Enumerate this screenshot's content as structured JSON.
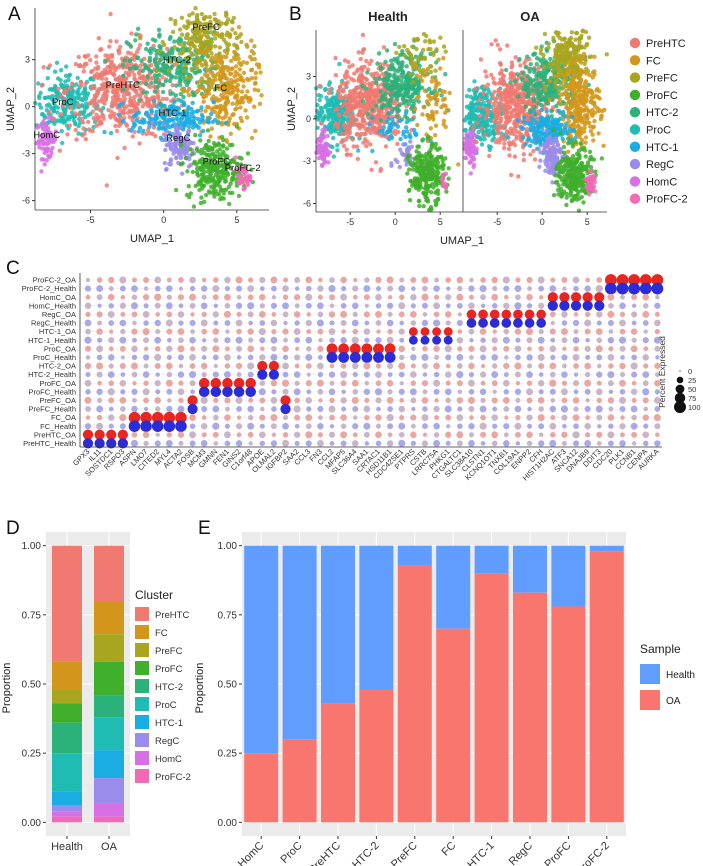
{
  "figure": {
    "panel_letters": [
      "A",
      "B",
      "C",
      "D",
      "E"
    ]
  },
  "colors": {
    "PreHTC": "#F07A71",
    "FC": "#D4961A",
    "PreFC": "#A8A51F",
    "ProFC": "#3FAF2C",
    "HTC-2": "#2BB27A",
    "ProC": "#1FBCB3",
    "HTC-1": "#1AADE3",
    "RegC": "#9A8CEA",
    "HomC": "#D870E5",
    "ProFC-2": "#F06AB5",
    "Health": "#619CFF",
    "OA": "#F8766D",
    "dot_high": "#E8261F",
    "dot_mid": "#C8B6C8",
    "dot_low": "#2B2BD8",
    "panel_bg": "#EBEBEB",
    "grid": "#FFFFFF"
  },
  "clusters": [
    "PreHTC",
    "FC",
    "PreFC",
    "ProFC",
    "HTC-2",
    "ProC",
    "HTC-1",
    "RegC",
    "HomC",
    "ProFC-2"
  ],
  "chart_data": [
    {
      "panel": "A",
      "type": "scatter",
      "xlabel": "UMAP_1",
      "ylabel": "UMAP_2",
      "xticks": [
        -5,
        0,
        5
      ],
      "yticks": [
        3,
        0,
        -3,
        -6
      ],
      "xlim": [
        -8.8,
        7.2
      ],
      "ylim": [
        -6.6,
        6.3
      ],
      "annotations": [
        {
          "text": "PreFC",
          "x": 2.9,
          "y": 4.9
        },
        {
          "text": "HTC-2",
          "x": 0.9,
          "y": 2.8
        },
        {
          "text": "FC",
          "x": 3.9,
          "y": 1.0
        },
        {
          "text": "PreHTC",
          "x": -2.8,
          "y": 1.2
        },
        {
          "text": "ProC",
          "x": -6.9,
          "y": 0.1
        },
        {
          "text": "HTC-1",
          "x": 0.6,
          "y": -0.6
        },
        {
          "text": "HomC",
          "x": -8.0,
          "y": -2.0
        },
        {
          "text": "RegC",
          "x": 1.0,
          "y": -2.2
        },
        {
          "text": "ProFC",
          "x": 3.6,
          "y": -3.7
        },
        {
          "text": "ProFC-2",
          "x": 5.4,
          "y": -4.1
        }
      ]
    },
    {
      "panel": "B",
      "type": "scatter",
      "facets": [
        "Health",
        "OA"
      ],
      "xlabel": "UMAP_1",
      "ylabel": "UMAP_2",
      "xticks": [
        -5,
        0,
        5
      ],
      "yticks": [
        3,
        0,
        -3,
        -6
      ],
      "xlim": [
        -8.8,
        7.2
      ],
      "ylim": [
        -6.6,
        6.3
      ],
      "legend": [
        "PreHTC",
        "FC",
        "PreFC",
        "ProFC",
        "HTC-2",
        "ProC",
        "HTC-1",
        "RegC",
        "HomC",
        "ProFC-2"
      ]
    },
    {
      "panel": "C",
      "type": "scatter",
      "subtype": "dotplot",
      "rows": [
        "ProFC-2_OA",
        "ProFC-2_Health",
        "HomC_OA",
        "HomC_Health",
        "RegC_OA",
        "RegC_Health",
        "HTC-1_OA",
        "HTC-1_Health",
        "ProC_OA",
        "ProC_Health",
        "HTC-2_OA",
        "HTC-2_Health",
        "ProFC_OA",
        "ProFC_Health",
        "PreFC_OA",
        "PreFC_Health",
        "FC_OA",
        "FC_Health",
        "PreHTC_OA",
        "PreHTC_Health"
      ],
      "genes": [
        "GPX3",
        "IL11",
        "SOSTDC1",
        "RSPO3",
        "ASPN",
        "LMO7",
        "CITED2",
        "MYL4",
        "ACTA2",
        "FOSB",
        "MCM3",
        "GMNN",
        "FEN1",
        "GINS2",
        "C1orf48",
        "APOE",
        "OLMAL2",
        "IGFBP2",
        "SAA2",
        "CCL3",
        "FN3",
        "CCL2",
        "MFAP5",
        "SLC36A4",
        "SAA1",
        "CRTAC1",
        "HSD11B1",
        "CDC42SE1",
        "PTPRS",
        "CSTB",
        "LRRC75A",
        "PHKG1",
        "CTGALTC1",
        "SLC38A10",
        "CLSTN1",
        "KCNQ1OT1",
        "TNXB1",
        "COL19A1",
        "ENPP2",
        "CFH",
        "HIST1H2AC",
        "ATF3",
        "SNCA12",
        "DNAJB9",
        "DDIT3",
        "CDC20",
        "PLK1",
        "CCNB1",
        "CENPA",
        "AURKA"
      ],
      "size_legend_title": "Percent Expressed",
      "size_legend_values": [
        0,
        25,
        50,
        75,
        100
      ],
      "highlights": [
        {
          "rows": [
            "ProFC-2_OA",
            "ProFC-2_Health"
          ],
          "genes": [
            "CDC20",
            "PLK1",
            "CCNB1",
            "CENPA",
            "AURKA"
          ],
          "pct": 96
        },
        {
          "rows": [
            "HomC_OA",
            "HomC_Health"
          ],
          "genes": [
            "HIST1H2AC",
            "ATF3",
            "SNCA12",
            "DNAJB9",
            "DDIT3"
          ],
          "pct": 70
        },
        {
          "rows": [
            "RegC_OA",
            "RegC_Health"
          ],
          "genes": [
            "SLC38A10",
            "CLSTN1",
            "KCNQ1OT1",
            "TNXB1",
            "COL19A1",
            "ENPP2",
            "CFH"
          ],
          "pct": 62
        },
        {
          "rows": [
            "HTC-1_OA",
            "HTC-1_Health"
          ],
          "genes": [
            "PTPRS",
            "CSTB",
            "LRRC75A",
            "PHKG1"
          ],
          "pct": 50
        },
        {
          "rows": [
            "ProC_OA",
            "ProC_Health"
          ],
          "genes": [
            "CCL2",
            "MFAP5",
            "SLC36A4",
            "SAA1",
            "CRTAC1",
            "HSD11B1"
          ],
          "pct": 80
        },
        {
          "rows": [
            "HTC-2_OA",
            "HTC-2_Health"
          ],
          "genes": [
            "APOE",
            "OLMAL2"
          ],
          "pct": 70
        },
        {
          "rows": [
            "ProFC_OA",
            "ProFC_Health"
          ],
          "genes": [
            "MCM3",
            "GMNN",
            "FEN1",
            "GINS2",
            "C1orf48"
          ],
          "pct": 75
        },
        {
          "rows": [
            "PreFC_OA",
            "PreFC_Health"
          ],
          "genes": [
            "FOSB",
            "IGFBP2"
          ],
          "pct": 70
        },
        {
          "rows": [
            "FC_OA",
            "FC_Health"
          ],
          "genes": [
            "ASPN",
            "LMO7",
            "CITED2",
            "MYL4",
            "ACTA2"
          ],
          "pct": 92
        },
        {
          "rows": [
            "PreHTC_OA",
            "PreHTC_Health"
          ],
          "genes": [
            "GPX3",
            "IL11",
            "SOSTDC1",
            "RSPO3"
          ],
          "pct": 70
        }
      ]
    },
    {
      "panel": "D",
      "type": "bar",
      "subtype": "stacked",
      "categories": [
        "Health",
        "OA"
      ],
      "ylabel": "Proportion",
      "yticks": [
        "1.00",
        "0.75",
        "0.50",
        "0.25",
        "0.00"
      ],
      "ylim": [
        0,
        1
      ],
      "legend_title": "Cluster",
      "series": [
        {
          "name": "PreHTC",
          "values": [
            0.42,
            0.2
          ]
        },
        {
          "name": "FC",
          "values": [
            0.1,
            0.12
          ]
        },
        {
          "name": "PreFC",
          "values": [
            0.05,
            0.1
          ]
        },
        {
          "name": "ProFC",
          "values": [
            0.07,
            0.12
          ]
        },
        {
          "name": "HTC-2",
          "values": [
            0.11,
            0.08
          ]
        },
        {
          "name": "ProC",
          "values": [
            0.14,
            0.12
          ]
        },
        {
          "name": "HTC-1",
          "values": [
            0.05,
            0.1
          ]
        },
        {
          "name": "RegC",
          "values": [
            0.02,
            0.09
          ]
        },
        {
          "name": "HomC",
          "values": [
            0.02,
            0.05
          ]
        },
        {
          "name": "ProFC-2",
          "values": [
            0.02,
            0.02
          ]
        }
      ]
    },
    {
      "panel": "E",
      "type": "bar",
      "subtype": "stacked",
      "categories": [
        "HomC",
        "ProC",
        "PreHTC",
        "HTC-2",
        "PreFC",
        "FC",
        "HTC-1",
        "RegC",
        "ProFC",
        "ProFC-2"
      ],
      "ylabel": "Proportion",
      "yticks": [
        "1.00",
        "0.75",
        "0.50",
        "0.25",
        "0.00"
      ],
      "ylim": [
        0,
        1
      ],
      "legend_title": "Sample",
      "series": [
        {
          "name": "Health",
          "values": [
            0.75,
            0.7,
            0.57,
            0.52,
            0.07,
            0.3,
            0.1,
            0.17,
            0.22,
            0.02
          ]
        },
        {
          "name": "OA",
          "values": [
            0.25,
            0.3,
            0.43,
            0.48,
            0.93,
            0.7,
            0.9,
            0.83,
            0.78,
            0.98
          ]
        }
      ]
    }
  ]
}
